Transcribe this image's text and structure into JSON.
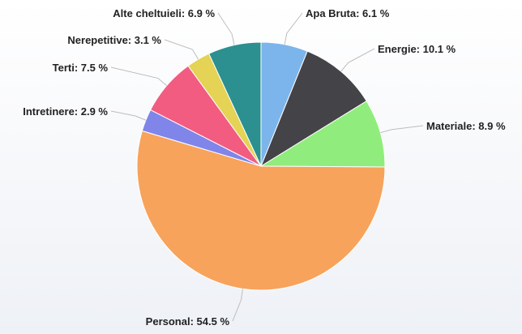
{
  "chart_data": {
    "type": "pie",
    "slices": [
      {
        "label": "Apa Bruta",
        "value": 6.1,
        "display": "6.1 %",
        "color": "#7cb5ec"
      },
      {
        "label": "Energie",
        "value": 10.1,
        "display": "10.1 %",
        "color": "#434348"
      },
      {
        "label": "Materiale",
        "value": 8.9,
        "display": "8.9 %",
        "color": "#90ed7d"
      },
      {
        "label": "Personal",
        "value": 54.5,
        "display": "54.5 %",
        "color": "#f7a35c"
      },
      {
        "label": "Intretinere",
        "value": 2.9,
        "display": "2.9 %",
        "color": "#8085e9"
      },
      {
        "label": "Terti",
        "value": 7.5,
        "display": "7.5 %",
        "color": "#f15c80"
      },
      {
        "label": "Nerepetitive",
        "value": 3.1,
        "display": "3.1 %",
        "color": "#e4d354"
      },
      {
        "label": "Alte cheltuieli",
        "value": 6.9,
        "display": "6.9 %",
        "color": "#2b908f"
      }
    ],
    "start_angle": "12 o'clock, clockwise",
    "legend": "none",
    "data_labels": "outside with leader lines"
  }
}
